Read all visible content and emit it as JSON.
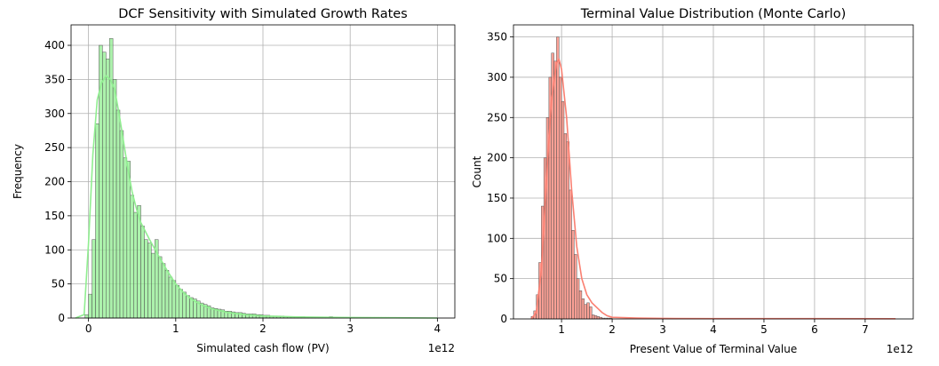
{
  "chart_data": [
    {
      "type": "bar",
      "title": "DCF Sensitivity with Simulated Growth Rates",
      "xlabel": "Simulated cash flow (PV)",
      "ylabel": "Frequency",
      "x_offset_text": "1e12",
      "xlim": [
        -0.2,
        4.2
      ],
      "ylim": [
        0,
        430
      ],
      "xticks": [
        0,
        1,
        2,
        3,
        4
      ],
      "xtick_labels": [
        "0",
        "1",
        "2",
        "3",
        "4"
      ],
      "yticks": [
        0,
        50,
        100,
        150,
        200,
        250,
        300,
        350,
        400
      ],
      "grid": true,
      "bar_color": "#90ee90",
      "kde_color": "#90ee90",
      "bin_start": -0.04,
      "bin_width": 0.04,
      "values": [
        5,
        35,
        115,
        285,
        400,
        390,
        380,
        410,
        350,
        305,
        275,
        235,
        230,
        180,
        155,
        165,
        135,
        115,
        110,
        95,
        115,
        90,
        80,
        70,
        60,
        55,
        48,
        42,
        38,
        33,
        30,
        28,
        25,
        22,
        20,
        18,
        15,
        14,
        13,
        12,
        10,
        10,
        9,
        8,
        8,
        7,
        6,
        6,
        6,
        5,
        5,
        4,
        4,
        3,
        3,
        3,
        3,
        2,
        2,
        2,
        2,
        2,
        2,
        1,
        1,
        1,
        1,
        1,
        1,
        1,
        2,
        1,
        1,
        1,
        1,
        1,
        1,
        1,
        1,
        1,
        1,
        1,
        1,
        1,
        1,
        1,
        1,
        1,
        1,
        1,
        1,
        1
      ],
      "kde": [
        [
          -0.15,
          0
        ],
        [
          -0.05,
          5
        ],
        [
          0,
          110
        ],
        [
          0.05,
          240
        ],
        [
          0.1,
          320
        ],
        [
          0.15,
          345
        ],
        [
          0.2,
          355
        ],
        [
          0.25,
          350
        ],
        [
          0.3,
          335
        ],
        [
          0.35,
          300
        ],
        [
          0.4,
          260
        ],
        [
          0.45,
          220
        ],
        [
          0.5,
          185
        ],
        [
          0.55,
          160
        ],
        [
          0.6,
          140
        ],
        [
          0.7,
          115
        ],
        [
          0.8,
          92
        ],
        [
          0.9,
          70
        ],
        [
          1.0,
          50
        ],
        [
          1.1,
          36
        ],
        [
          1.2,
          26
        ],
        [
          1.3,
          19
        ],
        [
          1.4,
          14
        ],
        [
          1.6,
          8
        ],
        [
          1.8,
          5
        ],
        [
          2.0,
          3
        ],
        [
          2.4,
          1.5
        ],
        [
          3.0,
          0.8
        ],
        [
          3.5,
          0.4
        ],
        [
          4.0,
          0
        ]
      ]
    },
    {
      "type": "bar",
      "title": "Terminal Value Distribution (Monte Carlo)",
      "xlabel": "Present Value of Terminal Value",
      "ylabel": "Count",
      "x_offset_text": "1e12",
      "xlim": [
        0.05,
        7.95
      ],
      "ylim": [
        0,
        365
      ],
      "xticks": [
        1,
        2,
        3,
        4,
        5,
        6,
        7
      ],
      "xtick_labels": [
        "1",
        "2",
        "3",
        "4",
        "5",
        "6",
        "7"
      ],
      "yticks": [
        0,
        50,
        100,
        150,
        200,
        250,
        300,
        350
      ],
      "grid": true,
      "bar_color": "#fa8072",
      "kde_color": "#fa8072",
      "bin_start": 0.4,
      "bin_width": 0.05,
      "values": [
        3,
        10,
        30,
        70,
        140,
        200,
        250,
        300,
        330,
        320,
        350,
        300,
        270,
        230,
        220,
        160,
        110,
        80,
        50,
        35,
        25,
        18,
        20,
        15,
        5,
        4,
        3,
        2,
        1,
        1,
        1,
        1
      ],
      "kde": [
        [
          0.4,
          0
        ],
        [
          0.5,
          8
        ],
        [
          0.6,
          60
        ],
        [
          0.7,
          170
        ],
        [
          0.8,
          270
        ],
        [
          0.9,
          318
        ],
        [
          0.95,
          322
        ],
        [
          1.0,
          310
        ],
        [
          1.1,
          250
        ],
        [
          1.2,
          160
        ],
        [
          1.3,
          90
        ],
        [
          1.4,
          50
        ],
        [
          1.5,
          30
        ],
        [
          1.6,
          20
        ],
        [
          1.7,
          14
        ],
        [
          1.8,
          8
        ],
        [
          1.9,
          4
        ],
        [
          2.0,
          2
        ],
        [
          2.5,
          1
        ],
        [
          3.0,
          0.6
        ],
        [
          4.0,
          0.4
        ],
        [
          5.0,
          0.3
        ],
        [
          6.0,
          0.3
        ],
        [
          7.6,
          0.2
        ]
      ]
    }
  ]
}
